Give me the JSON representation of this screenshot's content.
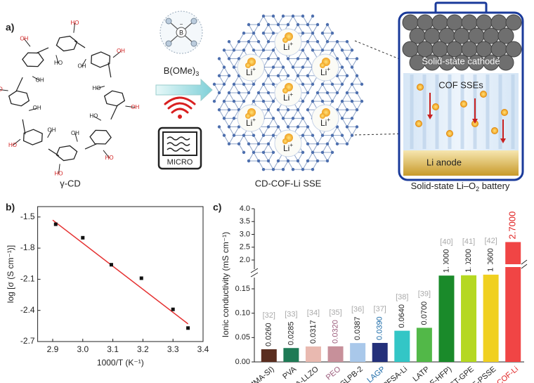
{
  "panel_a": {
    "label": "a)",
    "molecule_labels": [
      "OH",
      "HO",
      "HO",
      "OH",
      "HO",
      "OH",
      "HO",
      "OH",
      "HO",
      "OH",
      "OH",
      "HO",
      "HO",
      "OH",
      "OH",
      "HO"
    ],
    "molecule_name": "γ-CD",
    "boron_atom": "B",
    "boron_charge": "−",
    "reagent": "B(OMe)",
    "reagent_sub": "3",
    "microwave": "MICRO",
    "cof_ion": "Li",
    "cof_ion_charge": "+",
    "cof_name": "CD-COF-Li SSE",
    "cathode": "Solid-state cathode",
    "sse": "COF SSEs",
    "anode": "Li anode",
    "battery_pre": "Solid-state Li–O",
    "battery_sub": "2",
    "battery_post": " battery"
  },
  "chart_data": [
    {
      "type": "scatter",
      "panel_label": "b)",
      "x_label": "1000/T (K⁻¹)",
      "y_label": "log [σ (S cm⁻¹)]",
      "x": [
        2.91,
        3.0,
        3.095,
        3.195,
        3.3,
        3.35
      ],
      "values": [
        -1.57,
        -1.7,
        -1.96,
        -2.09,
        -2.39,
        -2.57
      ],
      "color": "#111111",
      "fit": {
        "x": [
          2.9,
          3.35
        ],
        "values": [
          -1.53,
          -2.53
        ],
        "color": "#e53030"
      },
      "xlim": [
        2.85,
        3.4
      ],
      "xticks": [
        2.9,
        {
          "value": 3.0,
          "label": "3.0"
        },
        3.1,
        3.2,
        3.3,
        3.4
      ],
      "ylim": [
        -2.7,
        -1.4
      ],
      "yticks": [
        -1.5,
        -1.8,
        -2.1,
        -2.4,
        -2.7
      ]
    },
    {
      "type": "bar",
      "panel_label": "c)",
      "y_label": "Ionic conductivity (mS cm⁻¹)",
      "categories": [
        "P(MMA-SI)",
        "PVA",
        "A-LLZO",
        "PEO",
        "SLPB-2",
        "LAGP",
        "PFSA-Li",
        "LATP",
        "P(VDF-HFP)",
        "FST-GPE",
        "GPE-PSSE",
        "CD-COF-Li"
      ],
      "values": [
        0.026,
        0.0285,
        0.0317,
        0.032,
        0.0387,
        0.039,
        0.064,
        0.07,
        1.0,
        1.02,
        1.06,
        2.7
      ],
      "value_labels": [
        "0.0260",
        "0.0285",
        "0.0317",
        "0.0320",
        "0.0387",
        "0.0390",
        "0.0640",
        "0.0700",
        "1.0000",
        "1.0200",
        "1.0600",
        "2.7000"
      ],
      "references": [
        "[32]",
        "[33]",
        "[34]",
        "[35]",
        "[36]",
        "[37]",
        "[38]",
        "[39]",
        "[40]",
        "[41]",
        "[42]",
        null
      ],
      "colors": [
        "#5a2d1f",
        "#1e7a55",
        "#e9b9b0",
        "#c7909a",
        "#a9c8ea",
        "#24307a",
        "#33c6c6",
        "#52b848",
        "#1a8a2a",
        "#b5d821",
        "#f0d020",
        "#f04545"
      ],
      "category_colors": [
        "#222222",
        "#222222",
        "#222222",
        "#9a5a7a",
        "#222222",
        "#1a6aa8",
        "#222222",
        "#222222",
        "#222222",
        "#222222",
        "#222222",
        "#e02020"
      ],
      "value_label_colors": [
        "#222222",
        "#222222",
        "#222222",
        "#9a5a7a",
        "#222222",
        "#1a6aa8",
        "#222222",
        "#222222",
        "#222222",
        "#222222",
        "#222222",
        "#e02020"
      ],
      "ylim": [
        0,
        4.0
      ],
      "y_break": [
        0.15,
        2.0
      ],
      "yticks": [
        {
          "value": 0,
          "label": "0.00"
        },
        0.05,
        {
          "value": 0.1,
          "label": "0.10"
        },
        0.15,
        {
          "value": 2.0,
          "label": "2.0"
        },
        2.5,
        {
          "value": 3.0,
          "label": "3.0"
        },
        3.5,
        {
          "value": 4.0,
          "label": "4.0"
        }
      ]
    }
  ]
}
